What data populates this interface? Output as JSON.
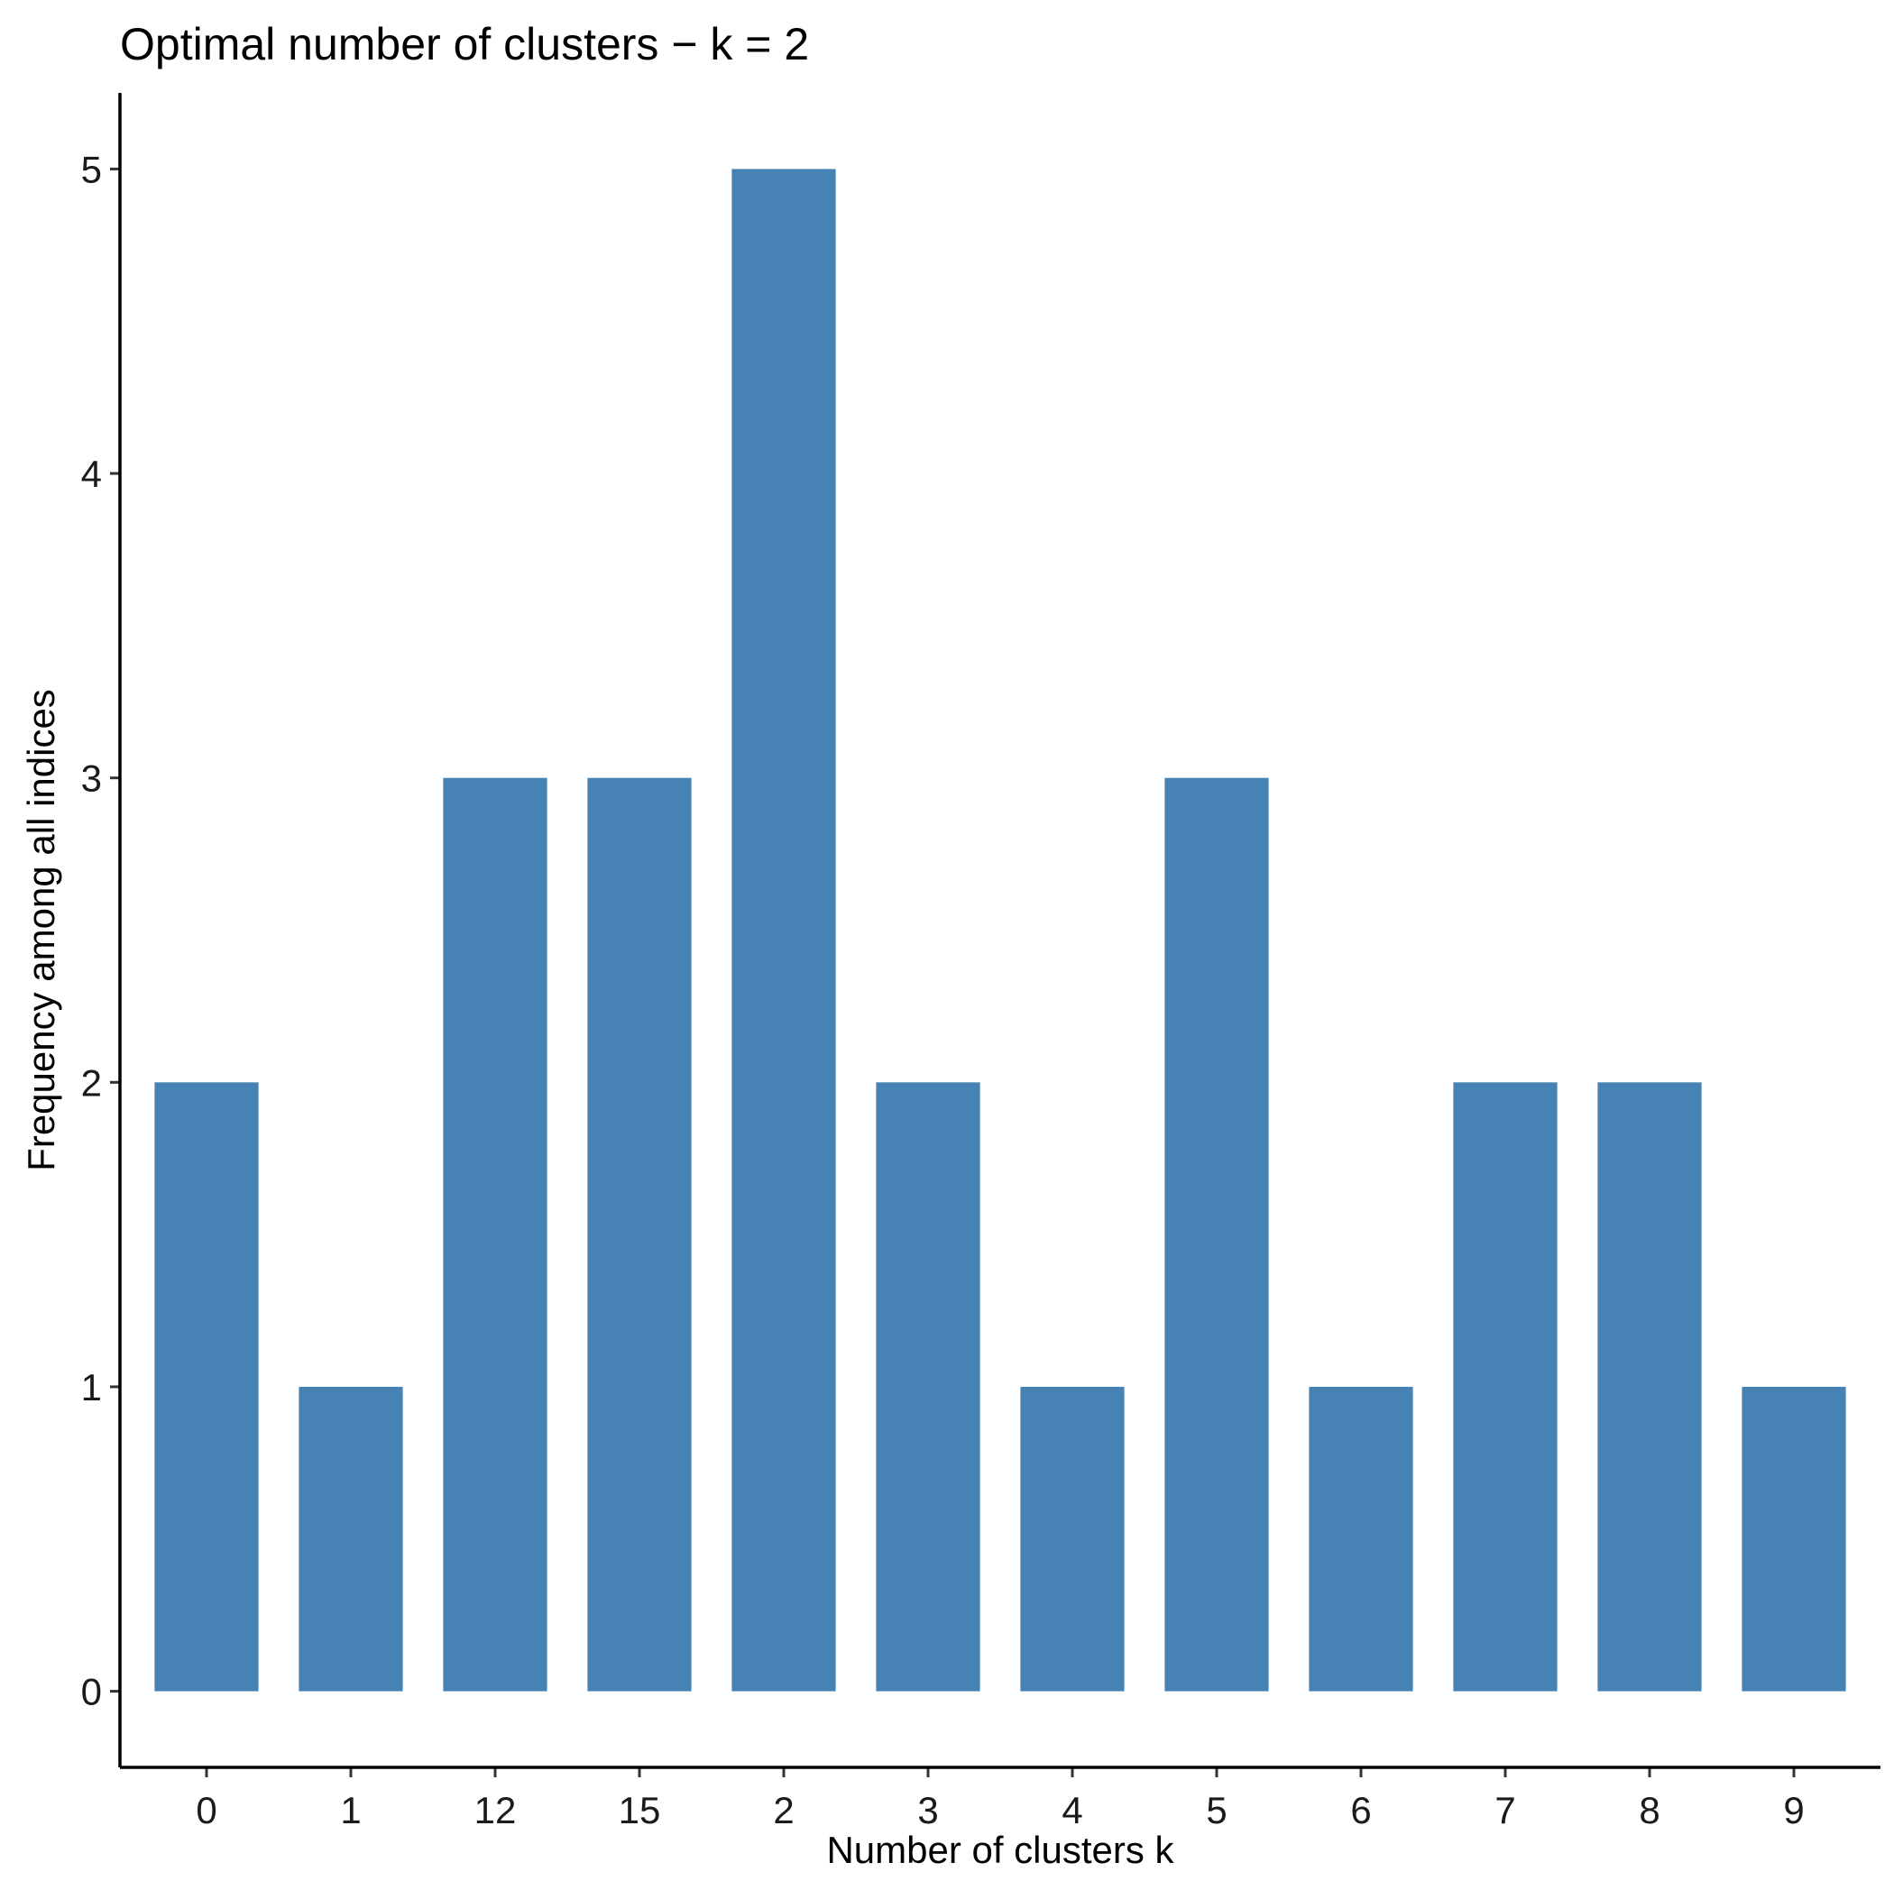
{
  "chart_data": {
    "type": "bar",
    "title": "Optimal number of clusters − k = 2",
    "xlabel": "Number of clusters k",
    "ylabel": "Frequency among all indices",
    "categories": [
      "0",
      "1",
      "12",
      "15",
      "2",
      "3",
      "4",
      "5",
      "6",
      "7",
      "8",
      "9"
    ],
    "values": [
      2,
      1,
      3,
      3,
      5,
      2,
      1,
      3,
      1,
      2,
      2,
      1
    ],
    "yticks": [
      0,
      1,
      2,
      3,
      4,
      5
    ],
    "ylim": [
      -0.25,
      5.25
    ],
    "bar_color": "#4682B4",
    "grid": false,
    "legend": "none"
  }
}
